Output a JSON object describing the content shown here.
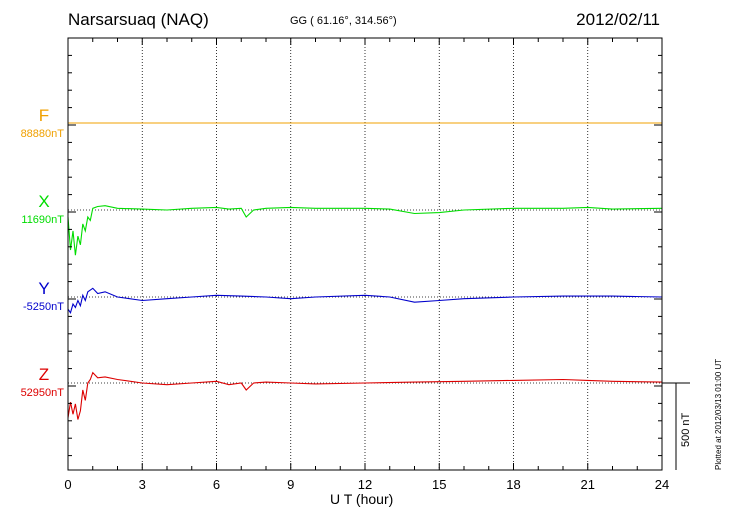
{
  "header": {
    "station": "Narsarsuaq (NAQ)",
    "coords": "GG ( 61.16°, 314.56°)",
    "date": "2012/02/11"
  },
  "footer": {
    "xlabel": "U T (hour)",
    "plotted": "Plotted at 2012/03/13 01:00 UT",
    "scale_label": "500 nT"
  },
  "chart_data": {
    "type": "line",
    "title": "Narsarsuaq (NAQ)",
    "xlabel": "U T (hour)",
    "xlim": [
      0,
      24
    ],
    "xticks": [
      0,
      3,
      6,
      9,
      12,
      15,
      18,
      21,
      24
    ],
    "grid": "vertical dotted lines every 3 hours",
    "scale_bar_nT": 500,
    "series": [
      {
        "name": "F",
        "baseline_label": "88880nT",
        "color": "#f0a000",
        "x": [
          0,
          24
        ],
        "y_offset_nT": [
          0,
          0
        ]
      },
      {
        "name": "X",
        "baseline_label": "11690nT",
        "color": "#00dd00",
        "x": [
          0,
          0.1,
          0.2,
          0.3,
          0.4,
          0.5,
          0.6,
          0.7,
          0.8,
          0.9,
          1.0,
          1.2,
          1.5,
          2.0,
          3.0,
          4.0,
          5.0,
          6.0,
          6.5,
          7.0,
          7.2,
          7.5,
          8.0,
          9.0,
          10.0,
          12.0,
          13.0,
          14.0,
          15.0,
          16.0,
          18.0,
          20.0,
          21.0,
          22.0,
          24.0
        ],
        "y_offset_nT": [
          -40,
          -230,
          -120,
          -260,
          -150,
          -200,
          -80,
          -120,
          -40,
          -60,
          10,
          20,
          25,
          10,
          5,
          0,
          10,
          15,
          5,
          10,
          -40,
          0,
          10,
          15,
          10,
          10,
          5,
          -20,
          -15,
          0,
          10,
          10,
          15,
          5,
          10
        ]
      },
      {
        "name": "Y",
        "baseline_label": "-5250nT",
        "color": "#0000cc",
        "x": [
          0,
          0.1,
          0.2,
          0.3,
          0.4,
          0.5,
          0.6,
          0.7,
          0.8,
          1.0,
          1.2,
          1.5,
          2.0,
          3.0,
          4.0,
          5.0,
          6.0,
          7.0,
          8.0,
          9.0,
          10.0,
          12.0,
          13.0,
          14.0,
          15.0,
          16.0,
          18.0,
          20.0,
          22.0,
          24.0
        ],
        "y_offset_nT": [
          -70,
          -90,
          -40,
          -60,
          -20,
          -50,
          10,
          -20,
          30,
          50,
          20,
          30,
          0,
          -20,
          -10,
          0,
          10,
          5,
          0,
          -10,
          0,
          10,
          0,
          -30,
          -20,
          -10,
          0,
          5,
          5,
          0
        ]
      },
      {
        "name": "Z",
        "baseline_label": "52950nT",
        "color": "#dd0000",
        "x": [
          0,
          0.1,
          0.2,
          0.3,
          0.4,
          0.5,
          0.6,
          0.7,
          0.8,
          0.9,
          1.0,
          1.2,
          1.5,
          2.0,
          3.0,
          4.0,
          5.0,
          6.0,
          6.5,
          7.0,
          7.2,
          7.5,
          8.0,
          9.0,
          10.0,
          12.0,
          14.0,
          16.0,
          18.0,
          20.0,
          21.0,
          22.0,
          24.0
        ],
        "y_offset_nT": [
          -200,
          -110,
          -180,
          -120,
          -210,
          -160,
          -40,
          -100,
          0,
          20,
          60,
          30,
          35,
          20,
          0,
          -10,
          0,
          10,
          -10,
          0,
          -40,
          0,
          5,
          0,
          -5,
          0,
          5,
          10,
          15,
          20,
          15,
          10,
          5
        ]
      }
    ]
  }
}
